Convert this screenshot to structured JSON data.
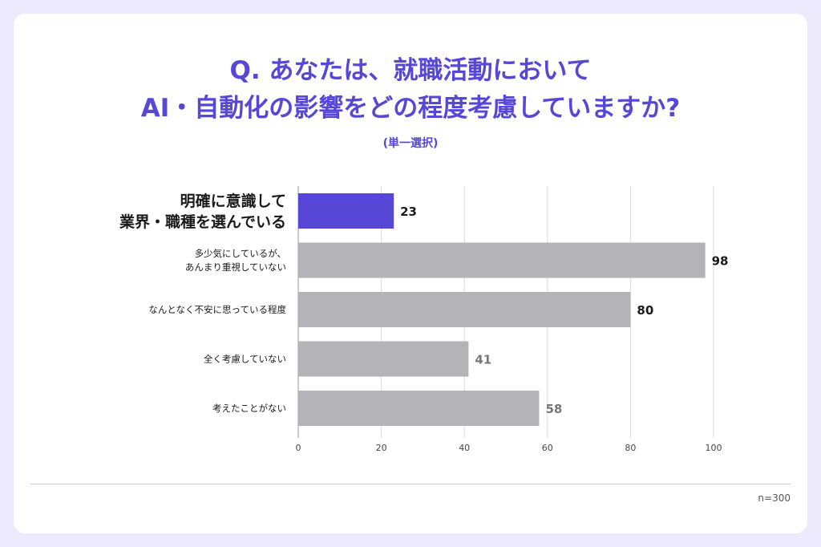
{
  "title_line1": "Q. あなたは、就職活動において",
  "title_line2": "AI・自動化の影響をどの程度考慮していますか?",
  "subtitle": "(単一選択)",
  "sample_note": "n=300",
  "colors": {
    "background": "#ECEAFC",
    "title": "#5647D6",
    "highlight_bar": "#5647D6",
    "default_bar": "#B3B3B8",
    "grid": "#D9D9DE"
  },
  "chart_data": {
    "type": "bar",
    "orientation": "horizontal",
    "categories": [
      [
        "明確に意識して",
        "業界・職種を選んでいる"
      ],
      [
        "多少気にしているが、",
        "あんまり重視していない"
      ],
      [
        "なんとなく不安に思っている程度"
      ],
      [
        "全く考慮していない"
      ],
      [
        "考えたことがない"
      ]
    ],
    "values": [
      23,
      98,
      80,
      41,
      58
    ],
    "highlight_index": 0,
    "xlim": [
      0,
      100
    ],
    "xticks": [
      0,
      20,
      40,
      60,
      80,
      100
    ],
    "grid": true
  }
}
